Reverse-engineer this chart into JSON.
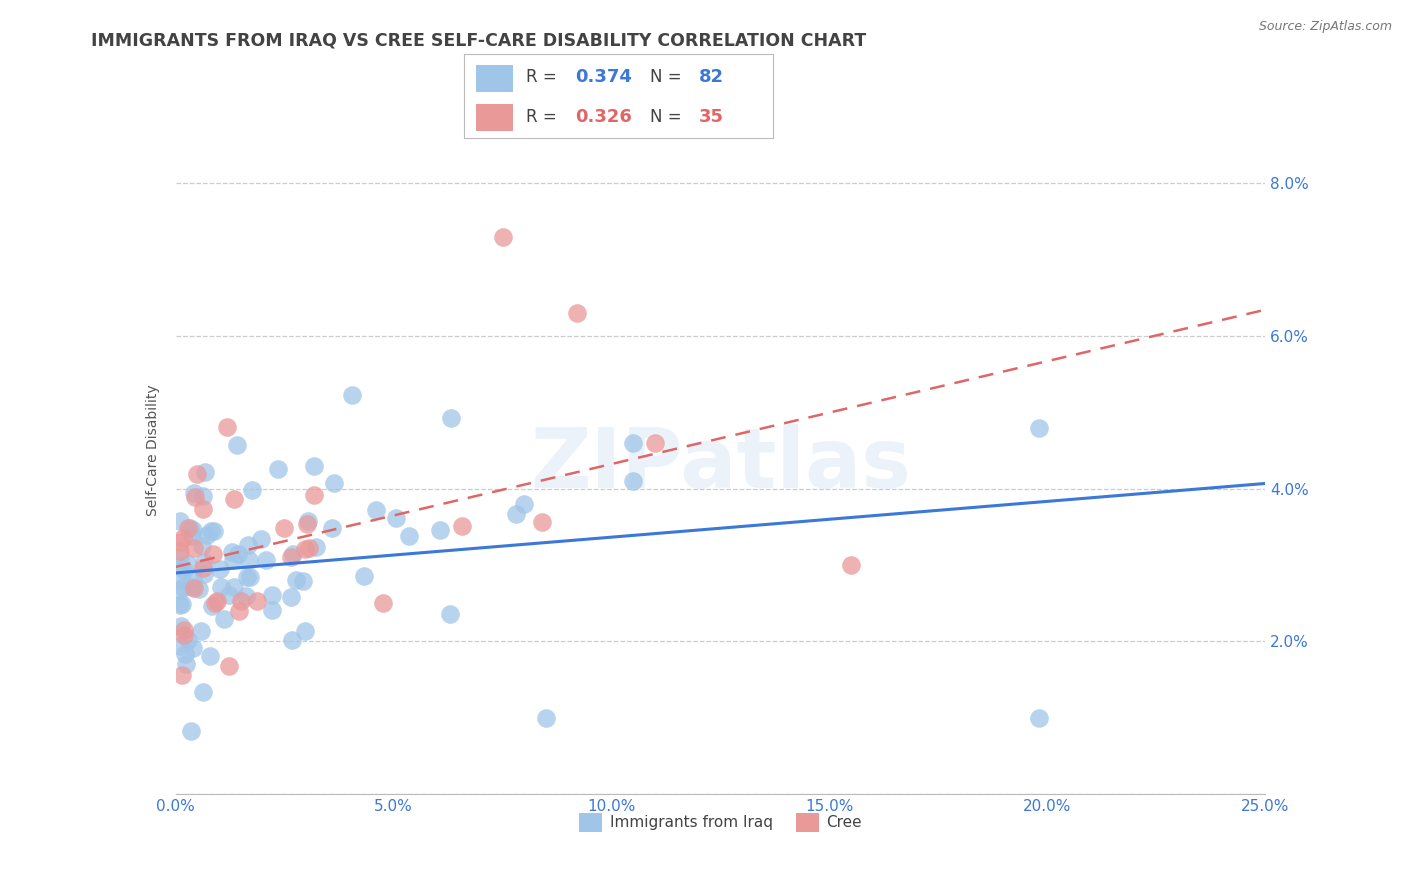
{
  "title": "IMMIGRANTS FROM IRAQ VS CREE SELF-CARE DISABILITY CORRELATION CHART",
  "source": "Source: ZipAtlas.com",
  "ylabel": "Self-Care Disability",
  "xlim": [
    0.0,
    0.25
  ],
  "ylim": [
    0.0,
    0.09
  ],
  "xticks": [
    0.0,
    0.05,
    0.1,
    0.15,
    0.2,
    0.25
  ],
  "yticks": [
    0.0,
    0.02,
    0.04,
    0.06,
    0.08
  ],
  "xticklabels": [
    "0.0%",
    "5.0%",
    "10.0%",
    "15.0%",
    "20.0%",
    "25.0%"
  ],
  "yticklabels": [
    "",
    "2.0%",
    "4.0%",
    "6.0%",
    "8.0%"
  ],
  "legend1_r_label": "R = ",
  "legend1_r_val": "0.374",
  "legend1_n_label": "  N = ",
  "legend1_n_val": "82",
  "legend2_r_label": "R = ",
  "legend2_r_val": "0.326",
  "legend2_n_label": "  N = ",
  "legend2_n_val": "35",
  "blue_color": "#9fc5e8",
  "pink_color": "#ea9999",
  "blue_line_color": "#3c78d8",
  "pink_line_color": "#e06666",
  "label1": "Immigrants from Iraq",
  "label2": "Cree",
  "watermark": "ZIPatlas",
  "background_color": "#ffffff",
  "grid_color": "#cccccc",
  "tick_color": "#3c78d8",
  "title_color": "#434343",
  "title_fontsize": 12.5,
  "axis_label_fontsize": 10,
  "tick_fontsize": 11,
  "legend_r_color": "#434343",
  "legend_val_blue": "#3c78d8",
  "legend_val_pink": "#e06666"
}
